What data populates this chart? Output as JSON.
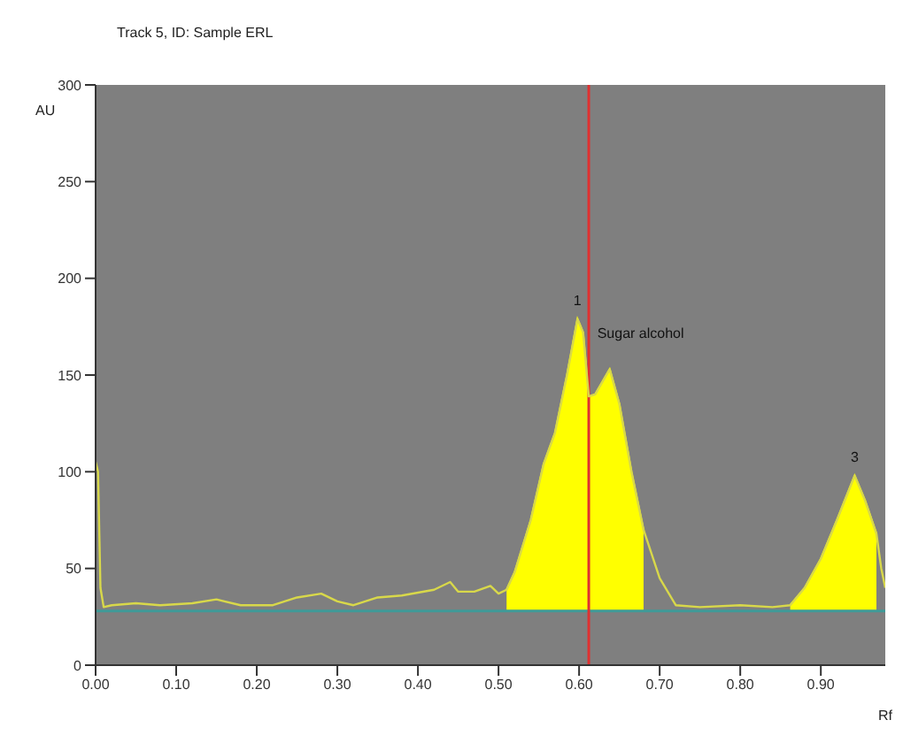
{
  "chart_data": {
    "type": "line",
    "title": "Track 5, ID: Sample ERL",
    "xlabel": "Rf",
    "ylabel": "AU",
    "xlim": [
      0,
      0.98
    ],
    "xticks": [
      {
        "value": 0,
        "label": "0.00"
      },
      {
        "value": 0.1,
        "label": "0.10"
      },
      {
        "value": 0.2,
        "label": "0.20"
      },
      {
        "value": 0.3,
        "label": "0.30"
      },
      {
        "value": 0.4,
        "label": "0.40"
      },
      {
        "value": 0.5,
        "label": "0.50"
      },
      {
        "value": 0.6,
        "label": "0.60"
      },
      {
        "value": 0.7,
        "label": "0.70"
      },
      {
        "value": 0.8,
        "label": "0.80"
      },
      {
        "value": 0.9,
        "label": "0.90"
      }
    ],
    "ylim": [
      0,
      300
    ],
    "yticks": [
      0,
      50,
      100,
      150,
      200,
      250,
      300
    ],
    "series": [
      {
        "type": "area",
        "color": "#ffff00",
        "x": [
          0.51,
          0.52,
          0.54,
          0.556,
          0.57,
          0.585,
          0.598,
          0.605,
          0.612,
          0.62,
          0.638,
          0.65,
          0.665,
          0.68
        ],
        "values": [
          39,
          48,
          75,
          104,
          120,
          150,
          179,
          172,
          139,
          140,
          153,
          135,
          100,
          70
        ]
      },
      {
        "type": "area",
        "color": "#ffff00",
        "x": [
          0.862,
          0.88,
          0.9,
          0.92,
          0.942,
          0.955,
          0.969
        ],
        "values": [
          31,
          40,
          55,
          75,
          98,
          85,
          68
        ]
      },
      {
        "color": "#d8d84a",
        "x": [
          0,
          0.003,
          0.006,
          0.01,
          0.02,
          0.05,
          0.08,
          0.12,
          0.15,
          0.18,
          0.22,
          0.25,
          0.28,
          0.3,
          0.32,
          0.35,
          0.38,
          0.42,
          0.44,
          0.45,
          0.47,
          0.49,
          0.5,
          0.51,
          0.52,
          0.54,
          0.556,
          0.57,
          0.585,
          0.598,
          0.605,
          0.612,
          0.62,
          0.638,
          0.65,
          0.665,
          0.68,
          0.7,
          0.72,
          0.75,
          0.8,
          0.84,
          0.862,
          0.88,
          0.9,
          0.92,
          0.942,
          0.955,
          0.969,
          0.975,
          0.98
        ],
        "values": [
          105,
          100,
          40,
          30,
          31,
          32,
          31,
          32,
          34,
          31,
          31,
          35,
          37,
          33,
          31,
          35,
          36,
          39,
          43,
          38,
          38,
          41,
          37,
          39,
          48,
          75,
          104,
          120,
          150,
          179,
          172,
          139,
          140,
          153,
          135,
          100,
          70,
          45,
          31,
          30,
          31,
          30,
          31,
          40,
          55,
          75,
          98,
          85,
          68,
          50,
          40
        ]
      }
    ],
    "ref_lines": [
      {
        "axis": "y",
        "value": 28,
        "color": "#3f9a98"
      },
      {
        "axis": "x",
        "value": 0.612,
        "color": "#e03030"
      }
    ],
    "annotations": [
      {
        "text": "1",
        "x": 0.598,
        "y": 179
      },
      {
        "text": "Sugar alcohol",
        "x": 0.605,
        "y": 172
      },
      {
        "text": "3",
        "x": 0.942,
        "y": 98
      }
    ],
    "marker": "none",
    "line_style": "solid"
  }
}
